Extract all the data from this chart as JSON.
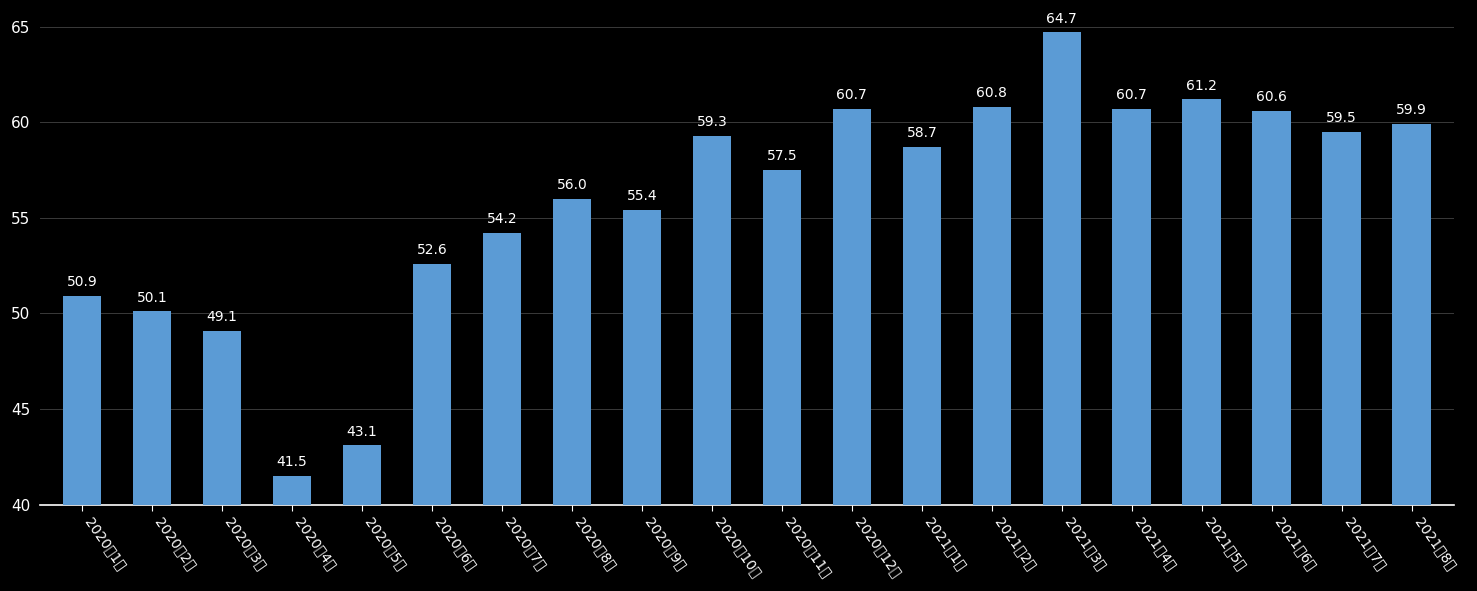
{
  "categories": [
    "2020年1月",
    "2020年2月",
    "2020年3月",
    "2020年4月",
    "2020年5月",
    "2020年6月",
    "2020年7月",
    "2020年8月",
    "2020年9月",
    "2020年10月",
    "2020年11月",
    "2020年12月",
    "2021年1月",
    "2021年2月",
    "2021年3月",
    "2021年4月",
    "2021年5月",
    "2021年6月",
    "2021年7月",
    "2021年8月"
  ],
  "values": [
    50.9,
    50.1,
    49.1,
    41.5,
    43.1,
    52.6,
    54.2,
    56.0,
    55.4,
    59.3,
    57.5,
    60.7,
    58.7,
    60.8,
    64.7,
    60.7,
    61.2,
    60.6,
    59.5,
    59.9
  ],
  "bar_color": "#5B9BD5",
  "background_color": "#000000",
  "text_color": "#FFFFFF",
  "grid_color": "#3A3A3A",
  "ymin": 40,
  "ymax": 65,
  "yticks": [
    40,
    45,
    50,
    55,
    60,
    65
  ],
  "bar_width": 0.55,
  "tick_fontsize": 11,
  "value_fontsize": 10,
  "xtick_rotation": -55
}
